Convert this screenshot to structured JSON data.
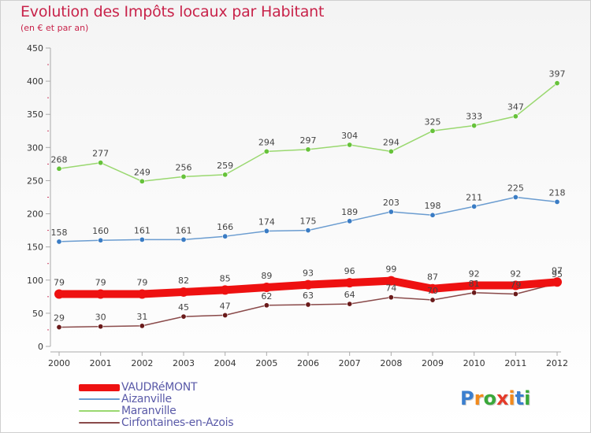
{
  "title": "Evolution des Impôts locaux par Habitant",
  "subtitle": "(en € et par an)",
  "logo": {
    "text": "Proxiti",
    "letter_colors": [
      "#3b7fcf",
      "#f28a1c",
      "#3aa83a",
      "#e53b2a",
      "#f28a1c",
      "#3b7fcf",
      "#3aa83a"
    ]
  },
  "chart_data": {
    "type": "line",
    "x": [
      "2000",
      "2001",
      "2002",
      "2003",
      "2004",
      "2005",
      "2006",
      "2007",
      "2008",
      "2009",
      "2010",
      "2011",
      "2012"
    ],
    "ylim": [
      0,
      450
    ],
    "yticks": [
      0,
      50,
      100,
      150,
      200,
      250,
      300,
      350,
      400,
      450
    ],
    "grid": false,
    "legend_position": "bottom-left",
    "series": [
      {
        "name": "VAUDRéMONT",
        "color": "#ee1111",
        "point_color": "#ee1111",
        "emphasis": true,
        "values": [
          79,
          79,
          79,
          82,
          85,
          89,
          93,
          96,
          99,
          87,
          92,
          92,
          97
        ],
        "labels": [
          "79",
          "79",
          "79",
          "82",
          "85",
          "89",
          "93",
          "96",
          "99",
          "87",
          "92",
          "92",
          "97"
        ]
      },
      {
        "name": "Aizanville",
        "color": "#6a9cd0",
        "point_color": "#3a7cc4",
        "emphasis": false,
        "values": [
          158,
          160,
          161,
          161,
          166,
          174,
          175,
          189,
          203,
          198,
          211,
          225,
          218
        ],
        "labels": [
          "158",
          "160",
          "161",
          "161",
          "166",
          "174",
          "175",
          "189",
          "203",
          "198",
          "211",
          "225",
          "218"
        ]
      },
      {
        "name": "Maranville",
        "color": "#9ad870",
        "point_color": "#66c23a",
        "emphasis": false,
        "values": [
          268,
          277,
          249,
          256,
          259,
          294,
          297,
          304,
          294,
          325,
          333,
          347,
          397
        ],
        "labels": [
          "268",
          "277",
          "249",
          "256",
          "259",
          "294",
          "297",
          "304",
          "294",
          "325",
          "333",
          "347",
          "397"
        ]
      },
      {
        "name": "Cirfontaines-en-Azois",
        "color": "#8a4a4a",
        "point_color": "#6a1a1a",
        "emphasis": false,
        "values": [
          29,
          30,
          31,
          45,
          47,
          62,
          63,
          64,
          74,
          70,
          81,
          79,
          95
        ],
        "labels": [
          "29",
          "30",
          "31",
          "45",
          "47",
          "62",
          "63",
          "64",
          "74",
          "70",
          "81",
          "79",
          "95"
        ]
      }
    ]
  }
}
